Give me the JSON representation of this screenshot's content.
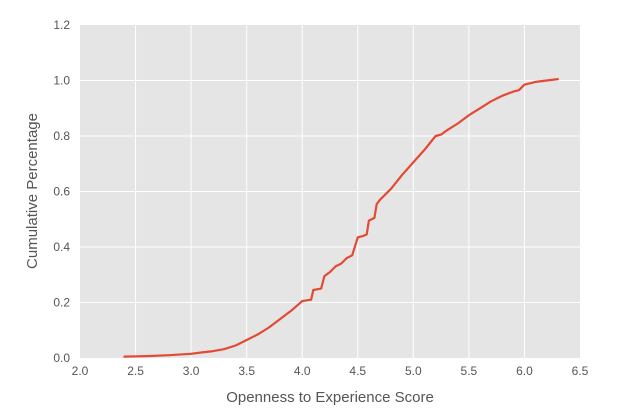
{
  "chart_data": {
    "type": "line",
    "title": "",
    "xlabel": "Openness to Experience Score",
    "ylabel": "Cumulative Percentage",
    "xlim": [
      2.0,
      6.5
    ],
    "ylim": [
      0.0,
      1.2
    ],
    "xticks": [
      "2.0",
      "2.5",
      "3.0",
      "3.5",
      "4.0",
      "4.5",
      "5.0",
      "5.5",
      "6.0",
      "6.5"
    ],
    "yticks": [
      "0.0",
      "0.2",
      "0.4",
      "0.6",
      "0.8",
      "1.0",
      "1.2"
    ],
    "grid": true,
    "colors": {
      "background": "#e5e5e5",
      "grid": "#ffffff",
      "line": "#e24a33"
    },
    "series": [
      {
        "x": [
          2.4,
          2.6,
          2.8,
          3.0,
          3.1,
          3.2,
          3.3,
          3.4,
          3.5,
          3.6,
          3.7,
          3.8,
          3.9,
          4.0,
          4.08,
          4.1,
          4.17,
          4.2,
          4.25,
          4.3,
          4.35,
          4.4,
          4.45,
          4.5,
          4.55,
          4.58,
          4.6,
          4.65,
          4.67,
          4.7,
          4.8,
          4.9,
          5.0,
          5.1,
          5.2,
          5.25,
          5.3,
          5.4,
          5.5,
          5.6,
          5.7,
          5.8,
          5.9,
          5.95,
          6.0,
          6.1,
          6.2,
          6.3
        ],
        "y": [
          0.005,
          0.007,
          0.01,
          0.015,
          0.02,
          0.025,
          0.032,
          0.045,
          0.065,
          0.085,
          0.11,
          0.14,
          0.17,
          0.205,
          0.21,
          0.245,
          0.25,
          0.295,
          0.31,
          0.33,
          0.34,
          0.36,
          0.37,
          0.435,
          0.44,
          0.445,
          0.495,
          0.505,
          0.555,
          0.57,
          0.61,
          0.66,
          0.705,
          0.75,
          0.8,
          0.805,
          0.82,
          0.845,
          0.875,
          0.9,
          0.925,
          0.945,
          0.96,
          0.965,
          0.985,
          0.995,
          1.0,
          1.005
        ]
      }
    ]
  }
}
